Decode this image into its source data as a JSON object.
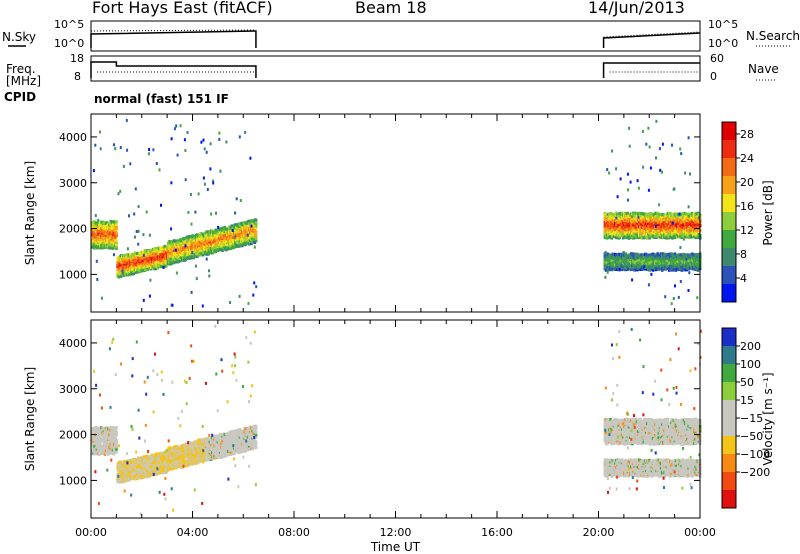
{
  "header": {
    "station": "Fort Hays East (fitACF)",
    "beam": "Beam 18",
    "date": "14/Jun/2013"
  },
  "strip": {
    "nsky_label": "N.Sky",
    "nsky_ticks": [
      "10^5",
      "10^0"
    ],
    "nsearch_label": "N.Search",
    "nsearch_ticks": [
      "10^5",
      "10^0"
    ],
    "freq_label_1": "Freq.",
    "freq_label_2": "[MHz]",
    "freq_ticks": [
      "18",
      "8"
    ],
    "nave_label": "Nave",
    "nave_ticks": [
      "60",
      "0"
    ],
    "cpid_label": "CPID",
    "cpid_text": "normal (fast) 151 IF"
  },
  "colors": {
    "power_scale": [
      "#0014f0",
      "#2a52b8",
      "#3f8a6e",
      "#3fa83f",
      "#8ccd3a",
      "#f2e418",
      "#f7a21a",
      "#f26a14",
      "#f02c10",
      "#e00000"
    ],
    "velocity_scale": [
      "#e01010",
      "#f04a10",
      "#f78a14",
      "#f5c418",
      "#c8c8c0",
      "#c8c8c0",
      "#8ccd3a",
      "#3fa83f",
      "#2d7a8a",
      "#1a2dc8"
    ]
  },
  "chart_data": [
    {
      "type": "heatmap",
      "name": "power",
      "ylabel": "Slant Range [km]",
      "xlabel": "Time UT",
      "x_ticks": [
        "00:00",
        "04:00",
        "08:00",
        "12:00",
        "16:00",
        "20:00",
        "00:00"
      ],
      "y_ticks": [
        "1000",
        "2000",
        "3000",
        "4000"
      ],
      "ylim": [
        180,
        4500
      ],
      "xlim_hours": [
        0,
        24
      ],
      "colorbar": {
        "label": "Power [dB]",
        "ticks": [
          "4",
          "8",
          "12",
          "16",
          "20",
          "24",
          "28"
        ],
        "range": [
          0,
          30
        ]
      },
      "echo_bands": [
        {
          "start_h": 0.0,
          "end_h": 1.0,
          "center_km": 1850,
          "width_km": 600,
          "power_db": 24
        },
        {
          "start_h": 1.0,
          "end_h": 3.0,
          "center_km": 1350,
          "width_km": 450,
          "power_db": 26
        },
        {
          "start_h": 3.0,
          "end_h": 6.5,
          "center_km": 1850,
          "width_km": 500,
          "power_db": 22
        },
        {
          "start_h": 20.2,
          "end_h": 24.0,
          "center_km": 2050,
          "width_km": 550,
          "power_db": 26
        },
        {
          "start_h": 20.2,
          "end_h": 24.0,
          "center_km": 1250,
          "width_km": 350,
          "power_db": 12
        }
      ]
    },
    {
      "type": "heatmap",
      "name": "velocity",
      "ylabel": "Slant Range [km]",
      "xlabel": "Time UT",
      "x_ticks": [
        "00:00",
        "04:00",
        "08:00",
        "12:00",
        "16:00",
        "20:00",
        "00:00"
      ],
      "y_ticks": [
        "1000",
        "2000",
        "3000",
        "4000"
      ],
      "ylim": [
        180,
        4500
      ],
      "xlim_hours": [
        0,
        24
      ],
      "colorbar": {
        "label": "Velocity [m s⁻¹]",
        "ticks": [
          "200",
          "100",
          "50",
          "15",
          "−15",
          "−50",
          "−100",
          "−200"
        ],
        "range": [
          -250,
          250
        ]
      }
    }
  ]
}
